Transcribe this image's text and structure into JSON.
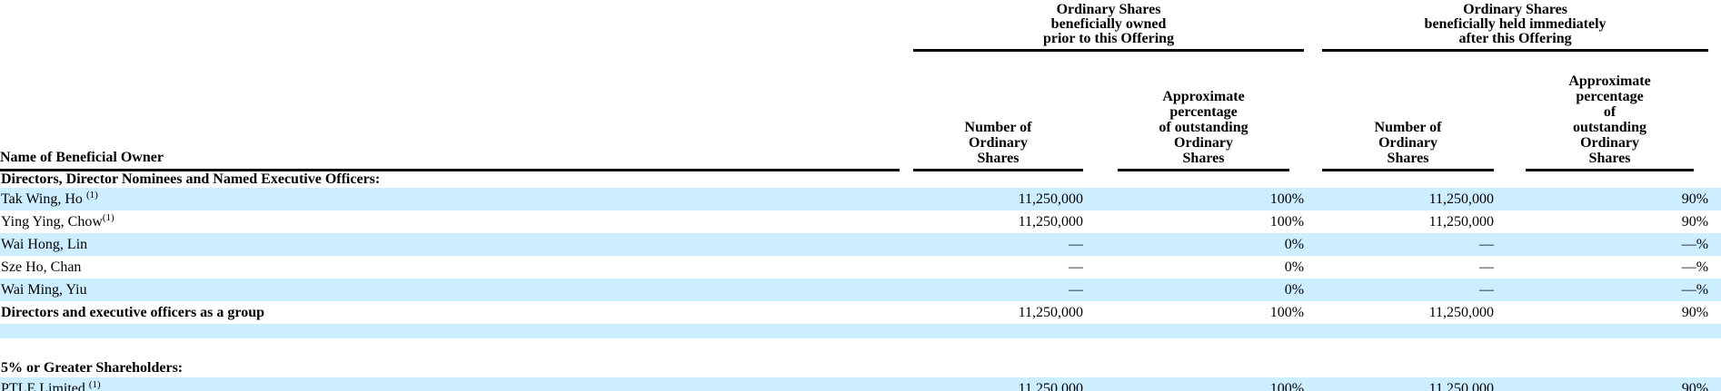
{
  "table": {
    "group_headers": [
      "Ordinary Shares\nbeneficially owned\nprior to this Offering",
      "Ordinary Shares\nbeneficially held immediately\nafter this Offering"
    ],
    "name_column_header": "Name of Beneficial Owner",
    "column_headers": [
      "Number of\nOrdinary\nShares",
      "Approximate\npercentage\nof outstanding\nOrdinary\nShares",
      "Number of\nOrdinary\nShares",
      "Approximate\npercentage\nof\noutstanding\nOrdinary\nShares"
    ],
    "colors": {
      "row_highlight": "#cceeff",
      "text": "#000000",
      "rule": "#000000"
    },
    "rows": [
      {
        "type": "section",
        "name": "Directors, Director Nominees and Named Executive Officers:",
        "highlight": false
      },
      {
        "type": "data",
        "name": "Tak Wing, Ho",
        "sup": "(1)",
        "sup_space": true,
        "bold": false,
        "highlight": true,
        "num_prior": "11,250,000",
        "pct_prior": "100%",
        "num_after": "11,250,000",
        "pct_after": "90%"
      },
      {
        "type": "data",
        "name": "Ying Ying, Chow",
        "sup": "(1)",
        "sup_space": false,
        "bold": false,
        "highlight": false,
        "num_prior": "11,250,000",
        "pct_prior": "100%",
        "num_after": "11,250,000",
        "pct_after": "90%"
      },
      {
        "type": "data",
        "name": "Wai Hong, Lin",
        "sup": "",
        "sup_space": false,
        "bold": false,
        "highlight": true,
        "num_prior": "—",
        "pct_prior": "0%",
        "num_after": "—",
        "pct_after": "—%"
      },
      {
        "type": "data",
        "name": "Sze Ho, Chan",
        "sup": "",
        "sup_space": false,
        "bold": false,
        "highlight": false,
        "num_prior": "—",
        "pct_prior": "0%",
        "num_after": "—",
        "pct_after": "—%"
      },
      {
        "type": "data",
        "name": "Wai Ming, Yiu",
        "sup": "",
        "sup_space": false,
        "bold": false,
        "highlight": true,
        "num_prior": "—",
        "pct_prior": "0%",
        "num_after": "—",
        "pct_after": "—%"
      },
      {
        "type": "data",
        "name": "Directors and executive officers as a group",
        "sup": "",
        "sup_space": false,
        "bold": true,
        "highlight": false,
        "num_prior": "11,250,000",
        "pct_prior": "100%",
        "num_after": "11,250,000",
        "pct_after": "90%"
      },
      {
        "type": "empty",
        "highlight": true
      },
      {
        "type": "empty",
        "highlight": false
      },
      {
        "type": "section",
        "name": "5% or Greater Shareholders:",
        "highlight": false
      },
      {
        "type": "data",
        "name": "PTLE Limited",
        "sup": "(1)",
        "sup_space": true,
        "bold": false,
        "highlight": true,
        "num_prior": "11,250,000",
        "pct_prior": "100%",
        "num_after": "11,250,000",
        "pct_after": "90%"
      }
    ]
  }
}
